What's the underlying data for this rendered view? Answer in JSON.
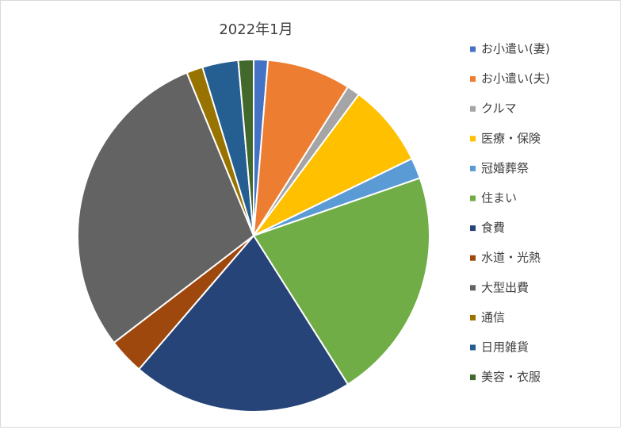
{
  "chart_data": {
    "type": "pie",
    "title": "2022年1月",
    "categories": [
      "お小遣い(妻)",
      "お小遣い(夫)",
      "クルマ",
      "医療・保険",
      "冠婚葬祭",
      "住まい",
      "食費",
      "水道・光熱",
      "大型出費",
      "通信",
      "日用雑貨",
      "美容・衣服"
    ],
    "values": [
      1.3,
      7.7,
      1.2,
      7.6,
      1.9,
      21.3,
      20.3,
      3.3,
      29.2,
      1.5,
      3.3,
      1.4
    ],
    "colors": [
      "#4472C4",
      "#ED7D31",
      "#A5A5A5",
      "#FFC000",
      "#5B9BD5",
      "#70AD47",
      "#264478",
      "#9E480E",
      "#636363",
      "#997300",
      "#255E91",
      "#43682B"
    ],
    "legend": "right"
  }
}
